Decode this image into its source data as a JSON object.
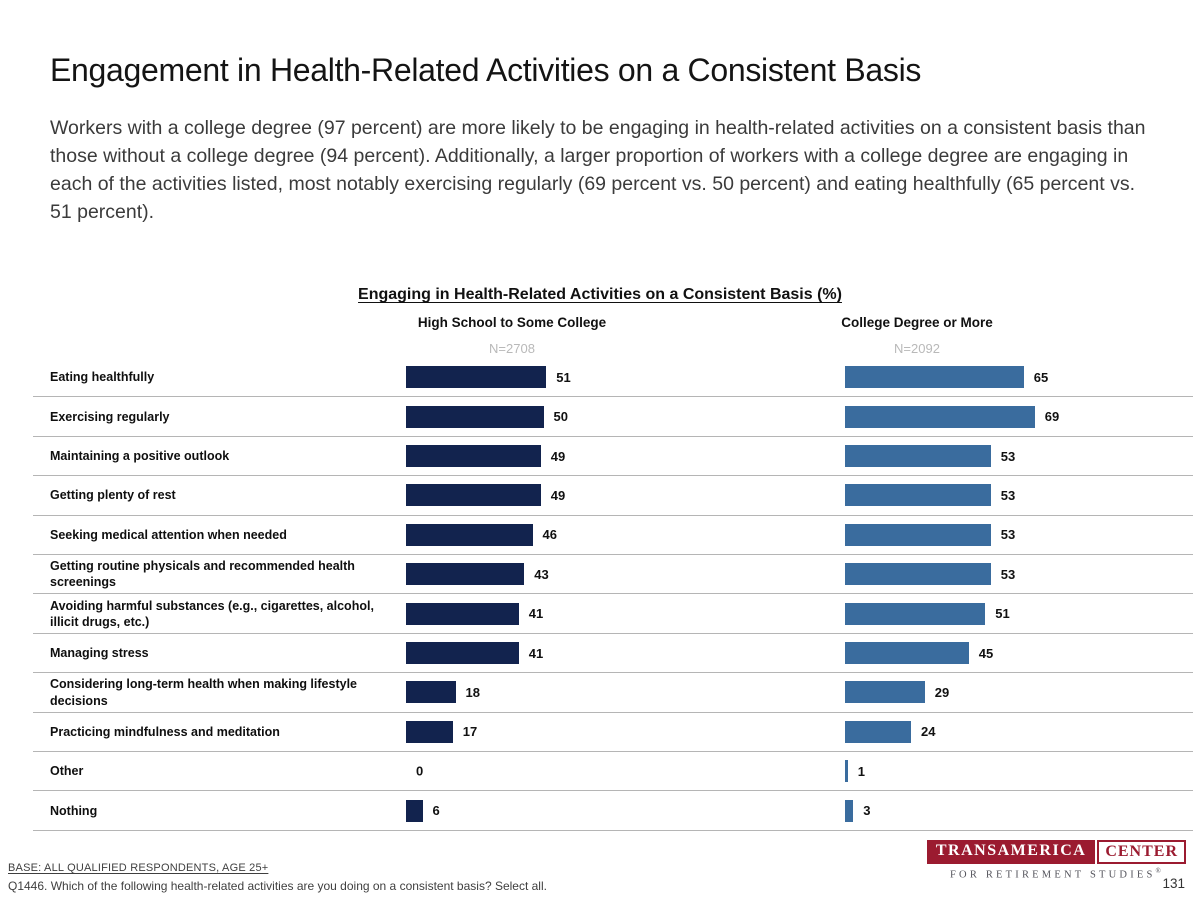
{
  "page": {
    "title": "Engagement in Health-Related Activities on a Consistent Basis",
    "description": "Workers with a college degree (97 percent) are more likely to be engaging in health-related activities on a consistent basis than those without a college degree (94 percent). Additionally, a larger proportion of workers with a college degree are engaging in each of the activities listed, most notably exercising regularly (69 percent vs. 50 percent) and eating healthfully (65 percent vs. 51 percent).",
    "page_number": "131"
  },
  "chart_data": {
    "type": "bar",
    "orientation": "horizontal",
    "title": "Engaging in Health-Related Activities on a Consistent Basis (%)",
    "xlim": [
      0,
      100
    ],
    "grid": "row-separators",
    "categories": [
      "Eating healthfully",
      "Exercising regularly",
      "Maintaining a positive outlook",
      "Getting plenty of rest",
      "Seeking medical attention when needed",
      "Getting routine physicals and recommended health screenings",
      "Avoiding harmful substances (e.g., cigarettes, alcohol, illicit drugs, etc.)",
      "Managing stress",
      "Considering long-term health when making lifestyle decisions",
      "Practicing mindfulness and meditation",
      "Other",
      "Nothing"
    ],
    "series": [
      {
        "name": "High School to Some College",
        "n_label": "N=2708",
        "color": "#12234E",
        "values": [
          51,
          50,
          49,
          49,
          46,
          43,
          41,
          41,
          18,
          17,
          0,
          6
        ]
      },
      {
        "name": "College Degree or More",
        "n_label": "N=2092",
        "color": "#3A6C9E",
        "values": [
          65,
          69,
          53,
          53,
          53,
          53,
          51,
          45,
          29,
          24,
          1,
          3
        ]
      }
    ]
  },
  "footer": {
    "base": "BASE:  ALL QUALIFIED RESPONDENTS, AGE 25+",
    "question": "Q1446. Which of the following health-related activities are you doing on a consistent basis? Select all.",
    "logo": {
      "brand": "TRANSAMERICA",
      "center": "CENTER",
      "tagline": "FOR RETIREMENT STUDIES",
      "registered": "®"
    }
  }
}
